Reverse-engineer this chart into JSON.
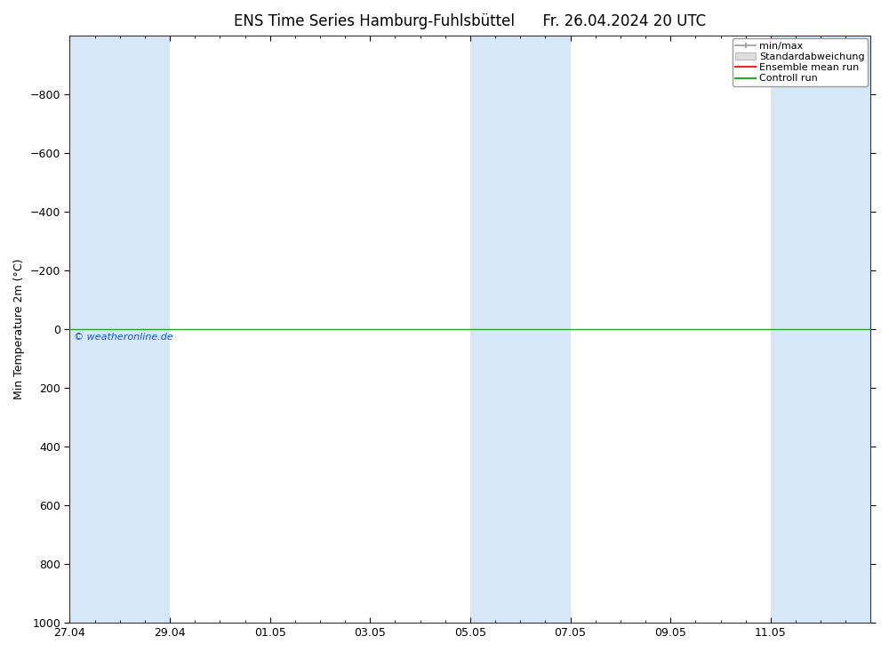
{
  "title": "ENS Time Series Hamburg-Fuhlsbüttel",
  "title_date": "Fr. 26.04.2024 20 UTC",
  "ylabel": "Min Temperature 2m (°C)",
  "copyright": "© weatheronline.de",
  "ylim_top": -1000,
  "ylim_bottom": 1000,
  "yticks": [
    -800,
    -600,
    -400,
    -200,
    0,
    200,
    400,
    600,
    800,
    1000
  ],
  "x_total": 16,
  "xtick_labels": [
    "27.04",
    "29.04",
    "01.05",
    "03.05",
    "05.05",
    "07.05",
    "09.05",
    "11.05"
  ],
  "xtick_positions": [
    0,
    2,
    4,
    6,
    8,
    10,
    12,
    14
  ],
  "shaded_bands": [
    {
      "xmin": 0,
      "xmax": 2,
      "color": "#d6e8f7"
    },
    {
      "xmin": 8,
      "xmax": 10,
      "color": "#d6e8f7"
    },
    {
      "xmin": 14,
      "xmax": 16,
      "color": "#d6e8f7"
    }
  ],
  "background_color": "#ffffff",
  "plot_bg_color": "#ffffff",
  "zero_line_color": "#22aa22",
  "axis_color": "#000000",
  "legend_items": [
    {
      "label": "min/max",
      "lcolor": "#aaaaaa",
      "type": "errorbar"
    },
    {
      "label": "Standardabweichung",
      "lcolor": "#cccccc",
      "type": "box"
    },
    {
      "label": "Ensemble mean run",
      "lcolor": "#ff2222",
      "type": "line"
    },
    {
      "label": "Controll run",
      "lcolor": "#22aa22",
      "type": "line"
    }
  ],
  "title_fontsize": 12,
  "tick_fontsize": 9,
  "ylabel_fontsize": 9,
  "legend_fontsize": 8
}
